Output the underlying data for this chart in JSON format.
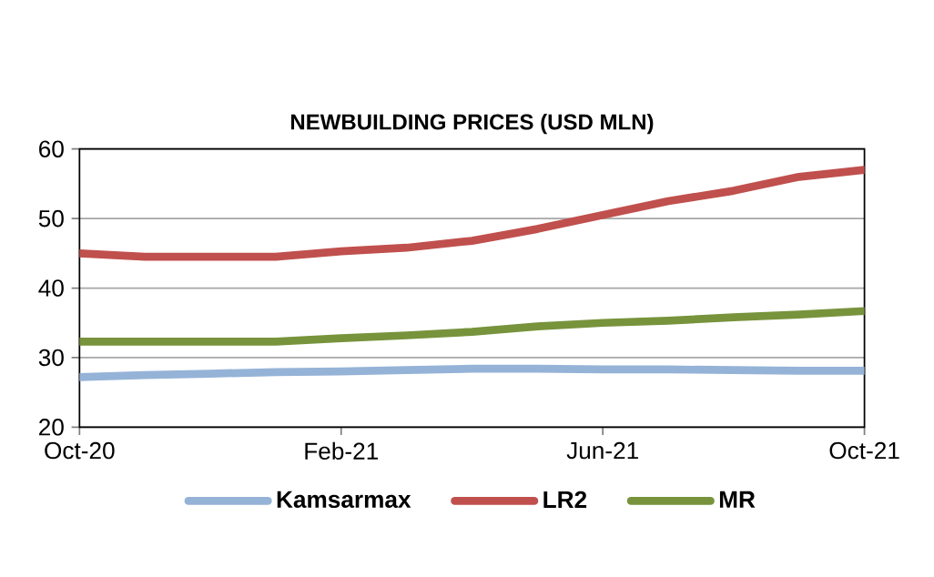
{
  "chart_data": {
    "type": "line",
    "title": "NEWBUILDING PRICES (USD MLN)",
    "x": [
      "2020-10",
      "2020-11",
      "2020-12",
      "2021-01",
      "2021-02",
      "2021-03",
      "2021-04",
      "2021-05",
      "2021-06",
      "2021-07",
      "2021-08",
      "2021-09",
      "2021-10"
    ],
    "series": [
      {
        "name": "Kamsarmax",
        "color": "#95b3d7",
        "values": [
          27.2,
          27.5,
          27.7,
          27.9,
          28,
          28.2,
          28.4,
          28.4,
          28.3,
          28.3,
          28.2,
          28.1,
          28.1
        ]
      },
      {
        "name": "LR2",
        "color": "#c0504d",
        "values": [
          45,
          44.5,
          44.5,
          44.5,
          45.3,
          45.8,
          46.8,
          48.5,
          50.5,
          52.5,
          54,
          56,
          57
        ]
      },
      {
        "name": "MR",
        "color": "#77933c",
        "values": [
          32.3,
          32.3,
          32.3,
          32.3,
          32.8,
          33.2,
          33.7,
          34.5,
          35,
          35.3,
          35.8,
          36.2,
          36.7
        ]
      }
    ],
    "xlim": [
      "2020-10",
      "2021-10"
    ],
    "xticks": [
      {
        "value": "2020-10",
        "label": "Oct-20"
      },
      {
        "value": "2021-02",
        "label": "Feb-21"
      },
      {
        "value": "2021-06",
        "label": "Jun-21"
      },
      {
        "value": "2021-10",
        "label": "Oct-21"
      }
    ],
    "ylim": [
      20,
      60
    ],
    "yticks": [
      20,
      30,
      40,
      50,
      60
    ],
    "grid": "y",
    "legend": "bottom",
    "marker": "none",
    "line_style": "solid"
  }
}
